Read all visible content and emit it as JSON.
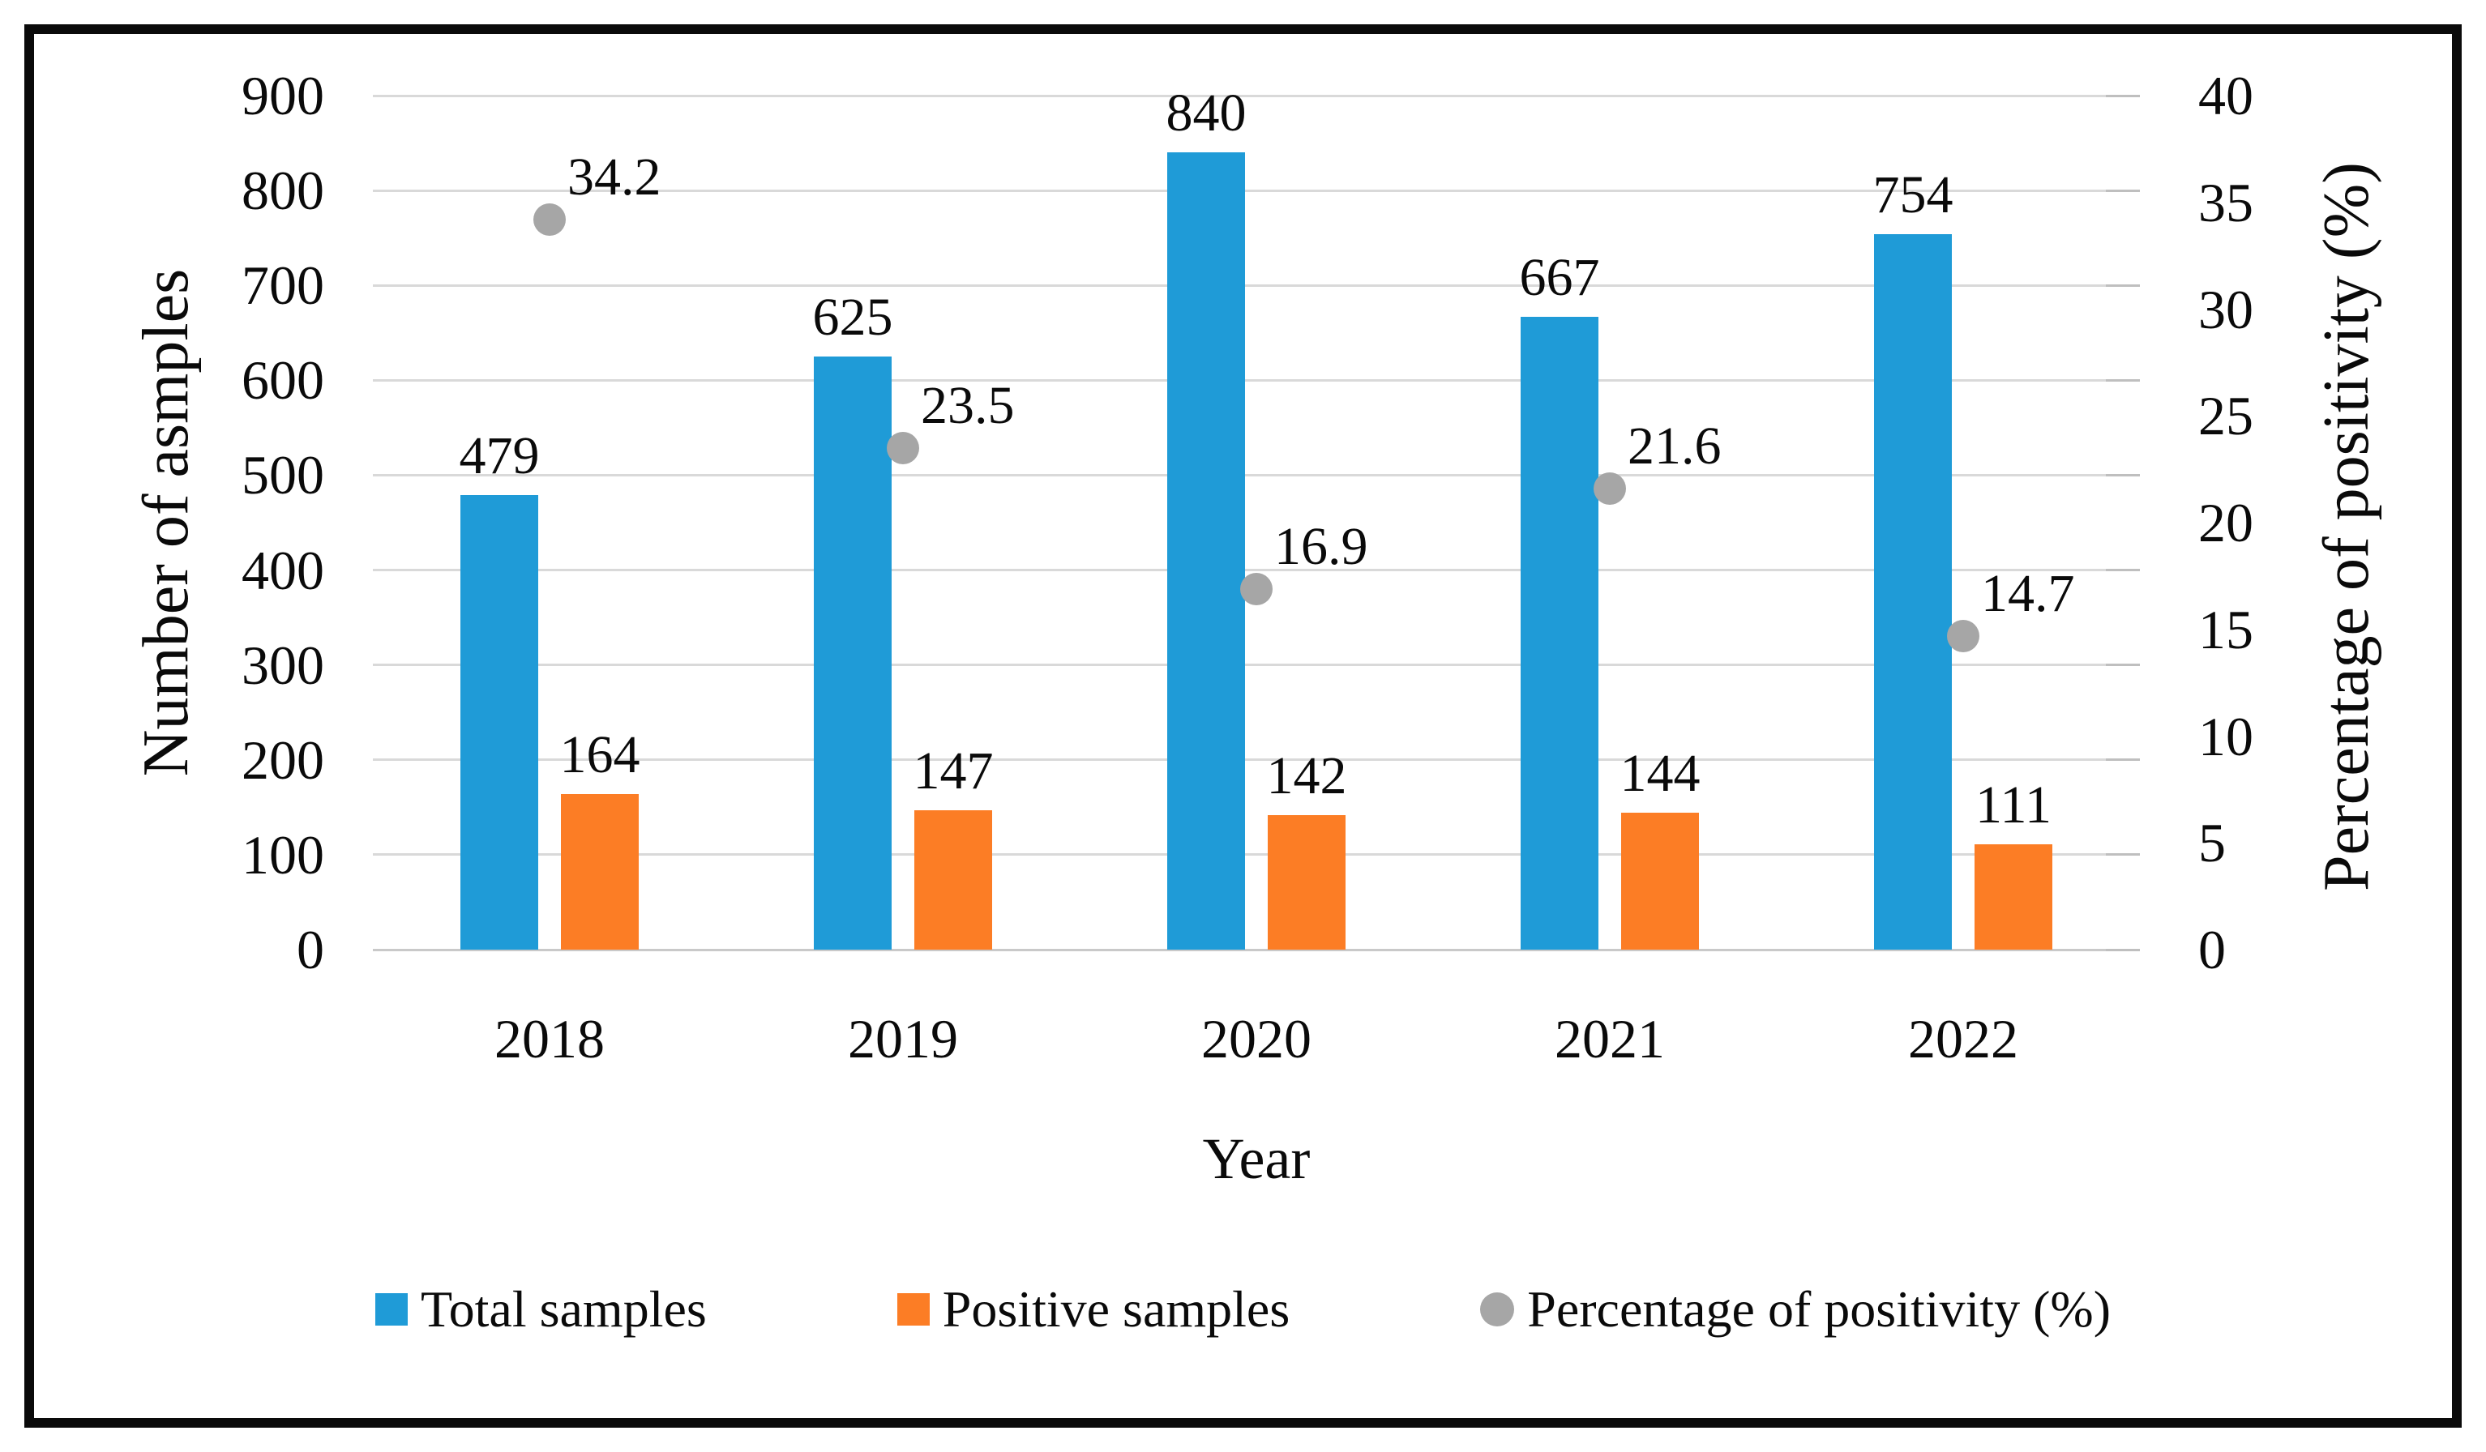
{
  "chart_data": {
    "type": "combo-bar-scatter",
    "categories": [
      "2018",
      "2019",
      "2020",
      "2021",
      "2022"
    ],
    "series": [
      {
        "name": "Total samples",
        "type": "bar",
        "axis": "left",
        "marker": "square",
        "color": "#1f9bd7",
        "values": [
          479,
          625,
          840,
          667,
          754
        ],
        "labels": [
          "479",
          "625",
          "840",
          "667",
          "754"
        ]
      },
      {
        "name": "Positive samples",
        "type": "bar",
        "axis": "left",
        "marker": "square",
        "color": "#fc7d25",
        "values": [
          164,
          147,
          142,
          144,
          111
        ],
        "labels": [
          "164",
          "147",
          "142",
          "144",
          "111"
        ]
      },
      {
        "name": "Percentage of positivity (%)",
        "type": "scatter",
        "axis": "right",
        "marker": "circle",
        "color": "#a6a6a6",
        "values": [
          34.2,
          23.5,
          16.9,
          21.6,
          14.7
        ],
        "labels": [
          "34.2",
          "23.5",
          "16.9",
          "21.6",
          "14.7"
        ]
      }
    ],
    "left_axis": {
      "title": "Number of asmples",
      "min": 0,
      "max": 900,
      "step": 100,
      "ticks": [
        "900",
        "800",
        "700",
        "600",
        "500",
        "400",
        "300",
        "200",
        "100",
        "0"
      ]
    },
    "right_axis": {
      "title": "Percentage of positivity (%)",
      "min": 0,
      "max": 40,
      "step": 5,
      "ticks": [
        "40",
        "35",
        "30",
        "25",
        "20",
        "15",
        "10",
        "5",
        "0"
      ]
    },
    "xlabel": "Year",
    "grid": true,
    "legend_position": "bottom",
    "gridline_color": "#d9d9d9",
    "text_color": "#0a0a0a"
  }
}
